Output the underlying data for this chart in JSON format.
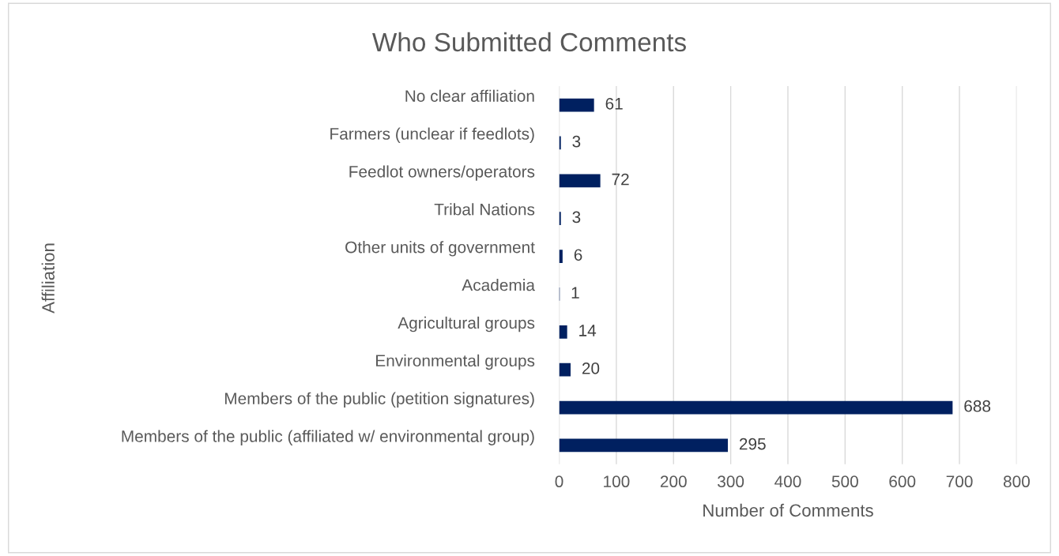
{
  "chart_data": {
    "type": "bar",
    "orientation": "horizontal",
    "title": "Who Submitted Comments",
    "xlabel": "Number of Comments",
    "ylabel": "Affiliation",
    "categories": [
      "No clear affiliation",
      "Farmers (unclear if feedlots)",
      "Feedlot owners/operators",
      "Tribal Nations",
      "Other units of government",
      "Academia",
      "Agricultural groups",
      "Environmental groups",
      "Members of the public (petition signatures)",
      "Members of the public (affiliated w/ environmental group)"
    ],
    "values": [
      61,
      3,
      72,
      3,
      6,
      1,
      14,
      20,
      688,
      295
    ],
    "color": "#002060",
    "xlim": [
      0,
      800
    ],
    "xticks": [
      0,
      100,
      200,
      300,
      400,
      500,
      600,
      700,
      800
    ],
    "grid": "x",
    "data_labels": true,
    "legend": false
  }
}
